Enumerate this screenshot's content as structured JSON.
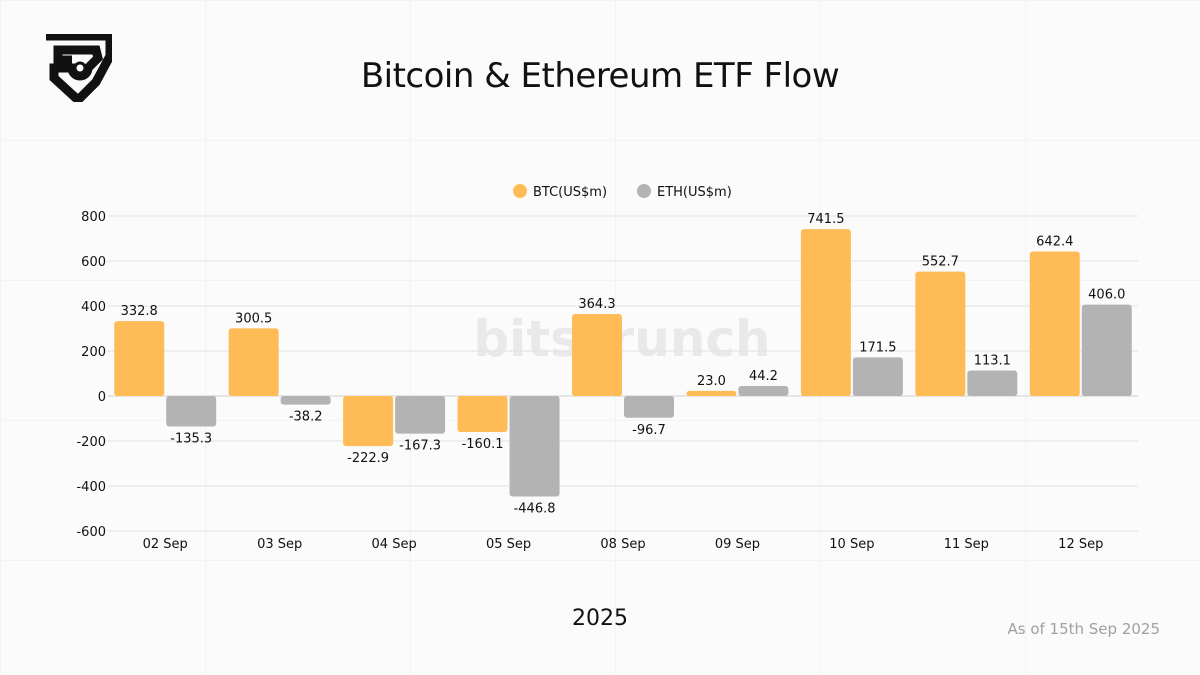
{
  "header": {
    "title": "Bitcoin & Ethereum ETF Flow",
    "logo_icon": "bitscrunch-shield-logo"
  },
  "footer": {
    "year": "2025",
    "as_of": "As of 15th Sep 2025"
  },
  "watermark": "bitscrunch",
  "chart_data": {
    "type": "bar",
    "categories": [
      "02 Sep",
      "03 Sep",
      "04 Sep",
      "05 Sep",
      "08 Sep",
      "09 Sep",
      "10 Sep",
      "11 Sep",
      "12 Sep"
    ],
    "series": [
      {
        "name": "BTC(US$m)",
        "color": "#ffbb55",
        "values": [
          332.8,
          300.5,
          -222.9,
          -160.1,
          364.3,
          23.0,
          741.5,
          552.7,
          642.4
        ]
      },
      {
        "name": "ETH(US$m)",
        "color": "#b3b3b3",
        "values": [
          -135.3,
          -38.2,
          -167.3,
          -446.8,
          -96.7,
          44.2,
          171.5,
          113.1,
          406.0
        ]
      }
    ],
    "ylim": [
      -600,
      800
    ],
    "yticks": [
      -600,
      -400,
      -200,
      0,
      200,
      400,
      600,
      800
    ],
    "grid": true,
    "legend": "top-center"
  }
}
